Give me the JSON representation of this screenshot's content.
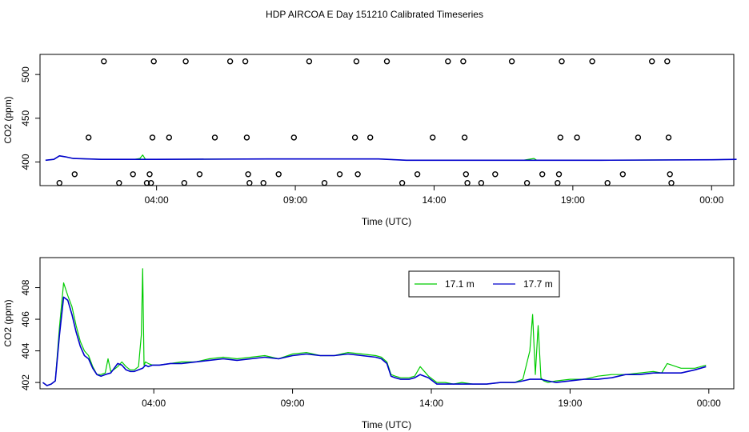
{
  "title": "HDP AIRCOA E  Day 151210  Calibrated Timeseries",
  "chart_data": [
    {
      "type": "scatter",
      "panel": "top",
      "xlabel": "Time (UTC)",
      "ylabel": "CO2 (ppm)",
      "x_unit": "hours",
      "xlim": [
        -0.2,
        24.8
      ],
      "ylim": [
        373,
        523
      ],
      "x_ticks": [
        {
          "value": 4,
          "label": "04:00"
        },
        {
          "value": 9,
          "label": "09:00"
        },
        {
          "value": 14,
          "label": "14:00"
        },
        {
          "value": 19,
          "label": "19:00"
        },
        {
          "value": 24,
          "label": "00:00"
        }
      ],
      "y_ticks": [
        {
          "value": 400,
          "label": "400"
        },
        {
          "value": 450,
          "label": "450"
        },
        {
          "value": 500,
          "label": "500"
        }
      ],
      "points": [
        [
          0.5,
          376
        ],
        [
          1.05,
          386
        ],
        [
          1.55,
          428
        ],
        [
          2.1,
          515
        ],
        [
          2.65,
          376
        ],
        [
          3.15,
          386
        ],
        [
          3.65,
          376
        ],
        [
          3.75,
          386
        ],
        [
          3.8,
          376
        ],
        [
          3.85,
          428
        ],
        [
          3.9,
          515
        ],
        [
          4.45,
          428
        ],
        [
          5.0,
          376
        ],
        [
          5.05,
          515
        ],
        [
          5.55,
          386
        ],
        [
          6.1,
          428
        ],
        [
          6.65,
          515
        ],
        [
          7.2,
          515
        ],
        [
          7.25,
          428
        ],
        [
          7.3,
          386
        ],
        [
          7.35,
          376
        ],
        [
          7.85,
          376
        ],
        [
          8.4,
          386
        ],
        [
          8.95,
          428
        ],
        [
          9.5,
          515
        ],
        [
          10.05,
          376
        ],
        [
          10.6,
          386
        ],
        [
          11.15,
          428
        ],
        [
          11.2,
          515
        ],
        [
          11.25,
          386
        ],
        [
          11.7,
          428
        ],
        [
          12.3,
          515
        ],
        [
          12.85,
          376
        ],
        [
          13.4,
          386
        ],
        [
          13.95,
          428
        ],
        [
          14.5,
          515
        ],
        [
          15.05,
          515
        ],
        [
          15.1,
          428
        ],
        [
          15.15,
          386
        ],
        [
          15.2,
          376
        ],
        [
          15.7,
          376
        ],
        [
          16.2,
          386
        ],
        [
          16.8,
          515
        ],
        [
          17.35,
          376
        ],
        [
          17.9,
          386
        ],
        [
          18.45,
          376
        ],
        [
          18.5,
          386
        ],
        [
          18.55,
          428
        ],
        [
          18.6,
          515
        ],
        [
          19.15,
          428
        ],
        [
          19.7,
          515
        ],
        [
          20.25,
          376
        ],
        [
          20.8,
          386
        ],
        [
          21.35,
          428
        ],
        [
          21.85,
          515
        ],
        [
          22.4,
          515
        ],
        [
          22.45,
          428
        ],
        [
          22.5,
          386
        ],
        [
          22.55,
          376
        ]
      ],
      "series": [
        {
          "name": "17.1 m",
          "color": "#00cc00",
          "x": [
            0.0,
            0.3,
            0.5,
            0.7,
            1.0,
            2.0,
            3.2,
            3.4,
            3.5,
            3.6,
            4.0,
            8.0,
            12.0,
            13.0,
            15.0,
            17.0,
            17.2,
            17.4,
            17.6,
            17.7,
            18.0,
            20.0,
            24.0,
            24.9
          ],
          "y": [
            402,
            403,
            407,
            406,
            404,
            403,
            403,
            404,
            408,
            403,
            403,
            403.5,
            403.5,
            402,
            402,
            402,
            402,
            403,
            404,
            402,
            402,
            402,
            402.5,
            403
          ]
        },
        {
          "name": "17.7 m",
          "color": "#0000cc",
          "x": [
            0.0,
            0.3,
            0.5,
            0.7,
            1.0,
            2.0,
            3.2,
            3.6,
            4.0,
            8.0,
            12.0,
            13.0,
            15.0,
            17.0,
            17.6,
            17.7,
            18.0,
            20.0,
            24.0,
            24.9
          ],
          "y": [
            402,
            403,
            407,
            406,
            404,
            403,
            403,
            403,
            403,
            403.5,
            403.5,
            402,
            402,
            402,
            402,
            402,
            402,
            402,
            402.5,
            403
          ]
        }
      ]
    },
    {
      "type": "line",
      "panel": "bottom",
      "xlabel": "Time (UTC)",
      "ylabel": "CO2 (ppm)",
      "x_unit": "hours",
      "xlim": [
        -0.1,
        24.9
      ],
      "ylim": [
        401.6,
        409.9
      ],
      "legend_position": "top-center",
      "x_ticks": [
        {
          "value": 4,
          "label": "04:00"
        },
        {
          "value": 9,
          "label": "09:00"
        },
        {
          "value": 14,
          "label": "14:00"
        },
        {
          "value": 19,
          "label": "19:00"
        },
        {
          "value": 24,
          "label": "00:00"
        }
      ],
      "y_ticks": [
        {
          "value": 402,
          "label": "402"
        },
        {
          "value": 404,
          "label": "404"
        },
        {
          "value": 406,
          "label": "406"
        },
        {
          "value": 408,
          "label": "408"
        }
      ],
      "series": [
        {
          "name": "17.1 m",
          "color": "#00cc00",
          "x": [
            0.0,
            0.15,
            0.3,
            0.45,
            0.6,
            0.75,
            0.9,
            1.05,
            1.2,
            1.35,
            1.5,
            1.65,
            1.8,
            1.95,
            2.1,
            2.25,
            2.35,
            2.45,
            2.55,
            2.7,
            2.85,
            3.0,
            3.15,
            3.3,
            3.45,
            3.55,
            3.6,
            3.65,
            3.7,
            3.8,
            3.95,
            4.2,
            4.6,
            5.0,
            5.5,
            6.0,
            6.5,
            7.0,
            7.5,
            8.0,
            8.5,
            9.0,
            9.5,
            10.0,
            10.5,
            11.0,
            11.5,
            12.0,
            12.2,
            12.4,
            12.55,
            12.7,
            12.9,
            13.2,
            13.4,
            13.6,
            13.9,
            14.2,
            14.5,
            14.8,
            15.1,
            15.5,
            16.0,
            16.5,
            17.0,
            17.3,
            17.55,
            17.65,
            17.75,
            17.85,
            17.95,
            18.05,
            18.2,
            18.5,
            19.0,
            19.5,
            20.0,
            20.5,
            21.0,
            21.5,
            22.0,
            22.3,
            22.5,
            23.0,
            23.5,
            23.9
          ],
          "y": [
            402.0,
            401.8,
            401.9,
            402.1,
            405.5,
            408.3,
            407.5,
            406.8,
            405.6,
            404.6,
            404.0,
            403.7,
            403.0,
            402.5,
            402.5,
            402.6,
            403.5,
            402.7,
            402.8,
            403.0,
            403.3,
            403.0,
            402.8,
            402.8,
            403.0,
            405.0,
            409.2,
            403.1,
            403.3,
            403.2,
            403.1,
            403.1,
            403.2,
            403.3,
            403.3,
            403.5,
            403.6,
            403.5,
            403.6,
            403.7,
            403.5,
            403.8,
            403.9,
            403.7,
            403.7,
            403.9,
            403.8,
            403.7,
            403.6,
            403.3,
            402.5,
            402.4,
            402.3,
            402.3,
            402.4,
            403.0,
            402.4,
            402.0,
            402.0,
            401.9,
            402.0,
            401.9,
            401.9,
            402.0,
            402.0,
            402.2,
            404.0,
            406.3,
            402.5,
            405.6,
            402.3,
            402.1,
            402.0,
            402.1,
            402.2,
            402.2,
            402.4,
            402.5,
            402.5,
            402.6,
            402.7,
            402.6,
            403.2,
            402.9,
            402.9,
            403.1
          ]
        },
        {
          "name": "17.7 m",
          "color": "#0000cc",
          "x": [
            0.0,
            0.15,
            0.3,
            0.45,
            0.6,
            0.75,
            0.9,
            1.05,
            1.2,
            1.35,
            1.5,
            1.65,
            1.8,
            1.95,
            2.1,
            2.25,
            2.45,
            2.7,
            2.85,
            3.0,
            3.15,
            3.3,
            3.45,
            3.6,
            3.7,
            3.8,
            3.95,
            4.2,
            4.6,
            5.0,
            5.5,
            6.0,
            6.5,
            7.0,
            7.5,
            8.0,
            8.5,
            9.0,
            9.5,
            10.0,
            10.5,
            11.0,
            11.5,
            12.0,
            12.2,
            12.4,
            12.55,
            12.7,
            12.9,
            13.2,
            13.4,
            13.6,
            13.9,
            14.2,
            14.5,
            14.8,
            15.1,
            15.5,
            16.0,
            16.5,
            17.0,
            17.3,
            17.55,
            17.75,
            17.95,
            18.2,
            18.5,
            19.0,
            19.5,
            20.0,
            20.5,
            21.0,
            21.5,
            22.0,
            22.5,
            23.0,
            23.5,
            23.9
          ],
          "y": [
            402.0,
            401.8,
            401.9,
            402.1,
            405.0,
            407.4,
            407.2,
            406.3,
            405.2,
            404.3,
            403.7,
            403.5,
            402.9,
            402.5,
            402.4,
            402.5,
            402.6,
            403.2,
            403.1,
            402.8,
            402.7,
            402.7,
            402.8,
            402.9,
            403.1,
            403.0,
            403.1,
            403.1,
            403.2,
            403.2,
            403.3,
            403.4,
            403.5,
            403.4,
            403.5,
            403.6,
            403.5,
            403.7,
            403.8,
            403.7,
            403.7,
            403.8,
            403.7,
            403.6,
            403.5,
            403.2,
            402.4,
            402.3,
            402.2,
            402.2,
            402.3,
            402.5,
            402.3,
            401.9,
            401.9,
            401.9,
            401.9,
            401.9,
            401.9,
            402.0,
            402.0,
            402.1,
            402.2,
            402.2,
            402.2,
            402.1,
            402.0,
            402.1,
            402.2,
            402.2,
            402.3,
            402.5,
            402.5,
            402.6,
            402.6,
            402.6,
            402.8,
            403.0
          ]
        }
      ]
    }
  ]
}
